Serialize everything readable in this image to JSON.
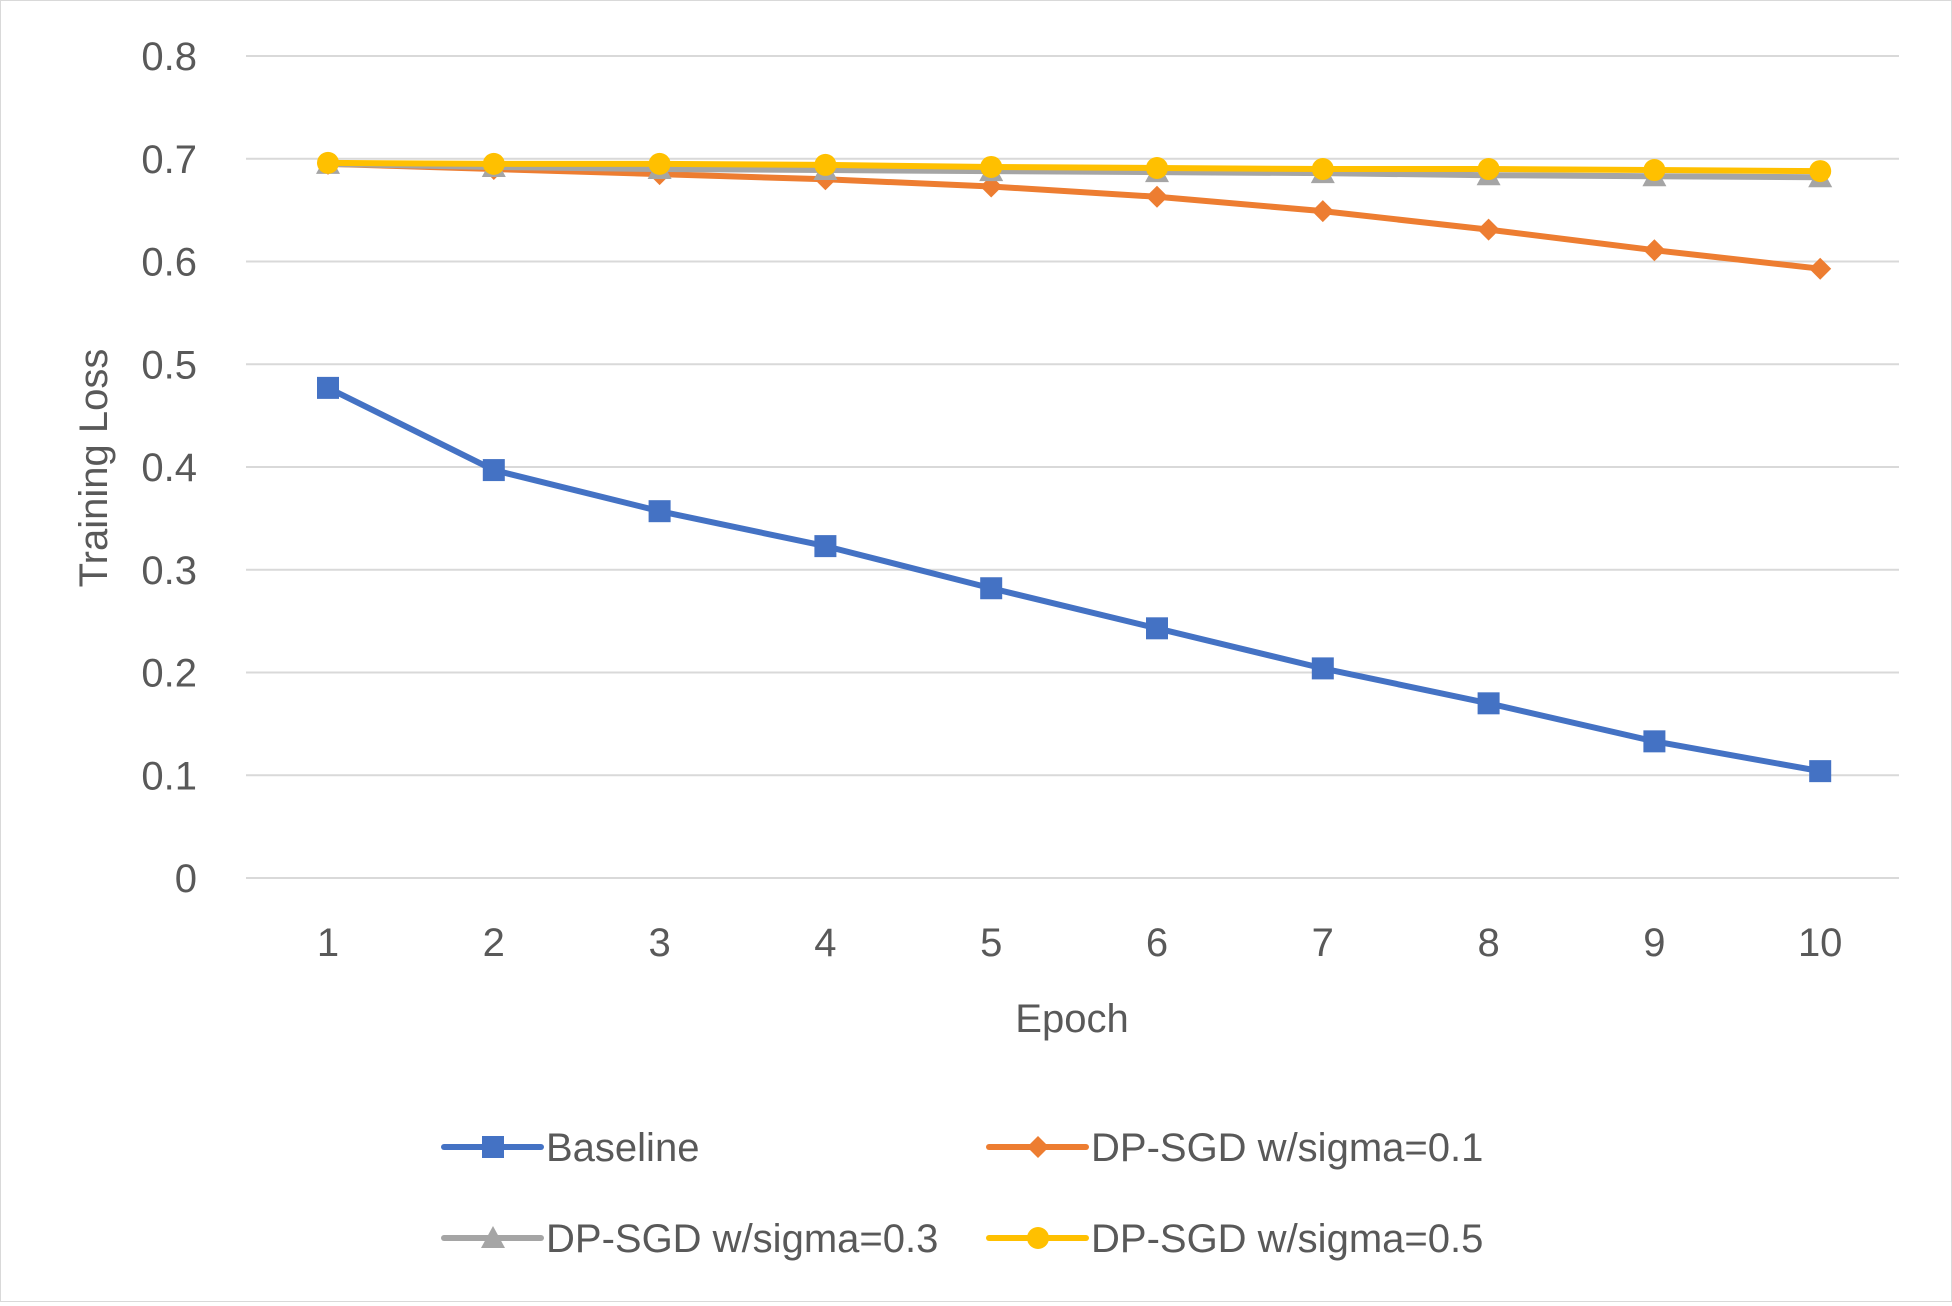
{
  "chart_data": {
    "type": "line",
    "title": "",
    "xlabel": "Epoch",
    "ylabel": "Training Loss",
    "x": [
      1,
      2,
      3,
      4,
      5,
      6,
      7,
      8,
      9,
      10
    ],
    "x_tick_labels": [
      "1",
      "2",
      "3",
      "4",
      "5",
      "6",
      "7",
      "8",
      "9",
      "10"
    ],
    "ylim": [
      0,
      0.8
    ],
    "y_ticks": [
      0,
      0.1,
      0.2,
      0.3,
      0.4,
      0.5,
      0.6,
      0.7,
      0.8
    ],
    "y_tick_labels": [
      "0",
      "0.1",
      "0.2",
      "0.3",
      "0.4",
      "0.5",
      "0.6",
      "0.7",
      "0.8"
    ],
    "grid": "horizontal",
    "legend_position": "bottom",
    "series": [
      {
        "name": "Baseline",
        "color": "#4472C4",
        "marker": "square",
        "values": [
          0.477,
          0.397,
          0.357,
          0.323,
          0.282,
          0.243,
          0.204,
          0.17,
          0.133,
          0.104
        ]
      },
      {
        "name": "DP-SGD w/sigma=0.1",
        "color": "#ED7D31",
        "marker": "diamond",
        "values": [
          0.695,
          0.69,
          0.685,
          0.68,
          0.673,
          0.663,
          0.649,
          0.631,
          0.611,
          0.593
        ]
      },
      {
        "name": "DP-SGD w/sigma=0.3",
        "color": "#A5A5A5",
        "marker": "triangle",
        "values": [
          0.695,
          0.692,
          0.69,
          0.689,
          0.688,
          0.687,
          0.686,
          0.684,
          0.683,
          0.682
        ]
      },
      {
        "name": "DP-SGD w/sigma=0.5",
        "color": "#FFC000",
        "marker": "circle",
        "values": [
          0.696,
          0.695,
          0.695,
          0.694,
          0.692,
          0.691,
          0.69,
          0.69,
          0.689,
          0.688
        ]
      }
    ]
  }
}
